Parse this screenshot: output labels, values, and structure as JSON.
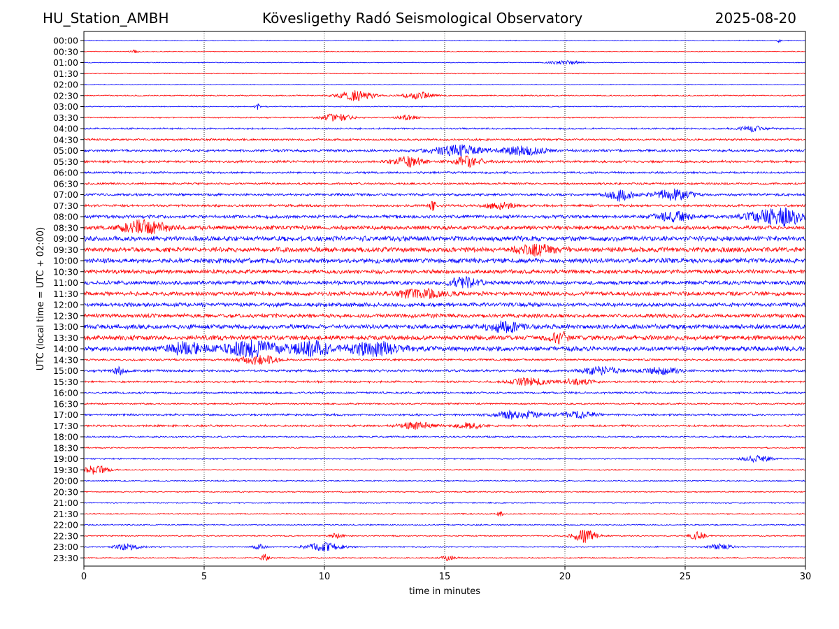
{
  "header": {
    "station": "HU_Station_AMBH",
    "title": "Kövesligethy Radó Seismological Observatory",
    "date": "2025-08-20"
  },
  "chart_data": {
    "type": "line",
    "title": "Kövesligethy Radó Seismological Observatory",
    "xlabel": "time in minutes",
    "ylabel": "UTC (local time = UTC + 02:00)",
    "xlim": [
      0,
      30
    ],
    "xticks": [
      0,
      5,
      10,
      15,
      20,
      25,
      30
    ],
    "grid": "vertical dotted at each x tick",
    "row_labels": [
      "00:00",
      "00:30",
      "01:00",
      "01:30",
      "02:00",
      "02:30",
      "03:00",
      "03:30",
      "04:00",
      "04:30",
      "05:00",
      "05:30",
      "06:00",
      "06:30",
      "07:00",
      "07:30",
      "08:00",
      "08:30",
      "09:00",
      "09:30",
      "10:00",
      "10:30",
      "11:00",
      "11:30",
      "12:00",
      "12:30",
      "13:00",
      "13:30",
      "14:00",
      "14:30",
      "15:00",
      "15:30",
      "16:00",
      "16:30",
      "17:00",
      "17:30",
      "18:00",
      "18:30",
      "19:00",
      "19:30",
      "20:00",
      "20:30",
      "21:00",
      "21:30",
      "22:00",
      "22:30",
      "23:00",
      "23:30"
    ],
    "row_colors": [
      "#0000ff",
      "#ff0000"
    ],
    "noise_level": [
      0.1,
      0.1,
      0.1,
      0.1,
      0.1,
      0.15,
      0.12,
      0.15,
      0.2,
      0.25,
      0.3,
      0.3,
      0.25,
      0.25,
      0.3,
      0.3,
      0.4,
      0.5,
      0.6,
      0.6,
      0.6,
      0.5,
      0.5,
      0.5,
      0.5,
      0.5,
      0.55,
      0.6,
      0.6,
      0.25,
      0.3,
      0.25,
      0.25,
      0.2,
      0.25,
      0.25,
      0.2,
      0.15,
      0.15,
      0.15,
      0.15,
      0.15,
      0.15,
      0.15,
      0.15,
      0.15,
      0.15,
      0.15
    ],
    "events": [
      {
        "row": 0,
        "t": 28.9,
        "amp": 0.5,
        "dur": 0.15
      },
      {
        "row": 1,
        "t": 2.1,
        "amp": 0.3,
        "dur": 0.4
      },
      {
        "row": 2,
        "t": 20.0,
        "amp": 0.5,
        "dur": 1.2
      },
      {
        "row": 5,
        "t": 11.3,
        "amp": 1.1,
        "dur": 1.5
      },
      {
        "row": 5,
        "t": 13.9,
        "amp": 0.8,
        "dur": 1.2
      },
      {
        "row": 6,
        "t": 7.2,
        "amp": 1.0,
        "dur": 0.2
      },
      {
        "row": 7,
        "t": 10.5,
        "amp": 0.8,
        "dur": 1.2
      },
      {
        "row": 7,
        "t": 13.5,
        "amp": 0.6,
        "dur": 0.8
      },
      {
        "row": 8,
        "t": 27.8,
        "amp": 0.7,
        "dur": 1.0
      },
      {
        "row": 10,
        "t": 15.5,
        "amp": 1.2,
        "dur": 2.0
      },
      {
        "row": 10,
        "t": 18.2,
        "amp": 1.0,
        "dur": 1.8
      },
      {
        "row": 11,
        "t": 13.5,
        "amp": 1.1,
        "dur": 1.2
      },
      {
        "row": 11,
        "t": 16.0,
        "amp": 1.3,
        "dur": 1.0
      },
      {
        "row": 14,
        "t": 22.3,
        "amp": 1.3,
        "dur": 1.0
      },
      {
        "row": 14,
        "t": 24.5,
        "amp": 1.2,
        "dur": 1.5
      },
      {
        "row": 15,
        "t": 14.5,
        "amp": 0.9,
        "dur": 0.3
      },
      {
        "row": 15,
        "t": 17.3,
        "amp": 0.7,
        "dur": 1.2
      },
      {
        "row": 16,
        "t": 24.5,
        "amp": 1.0,
        "dur": 1.5
      },
      {
        "row": 16,
        "t": 29.0,
        "amp": 1.9,
        "dur": 2.5
      },
      {
        "row": 17,
        "t": 2.5,
        "amp": 1.5,
        "dur": 1.8
      },
      {
        "row": 19,
        "t": 18.8,
        "amp": 1.0,
        "dur": 1.5
      },
      {
        "row": 22,
        "t": 15.8,
        "amp": 1.0,
        "dur": 1.2
      },
      {
        "row": 23,
        "t": 14.0,
        "amp": 0.9,
        "dur": 2.0
      },
      {
        "row": 26,
        "t": 17.5,
        "amp": 1.0,
        "dur": 1.5
      },
      {
        "row": 27,
        "t": 19.8,
        "amp": 1.0,
        "dur": 0.8
      },
      {
        "row": 28,
        "t": 4.3,
        "amp": 1.4,
        "dur": 1.5
      },
      {
        "row": 28,
        "t": 7.0,
        "amp": 1.6,
        "dur": 2.2
      },
      {
        "row": 28,
        "t": 9.5,
        "amp": 1.5,
        "dur": 1.5
      },
      {
        "row": 28,
        "t": 12.0,
        "amp": 1.4,
        "dur": 2.0
      },
      {
        "row": 29,
        "t": 7.3,
        "amp": 1.0,
        "dur": 1.5
      },
      {
        "row": 30,
        "t": 1.5,
        "amp": 0.8,
        "dur": 0.5
      },
      {
        "row": 30,
        "t": 21.5,
        "amp": 0.8,
        "dur": 1.5
      },
      {
        "row": 30,
        "t": 24.0,
        "amp": 0.7,
        "dur": 1.5
      },
      {
        "row": 31,
        "t": 18.5,
        "amp": 0.8,
        "dur": 1.5
      },
      {
        "row": 31,
        "t": 20.5,
        "amp": 0.7,
        "dur": 1.2
      },
      {
        "row": 34,
        "t": 18.0,
        "amp": 0.9,
        "dur": 2.0
      },
      {
        "row": 34,
        "t": 20.5,
        "amp": 0.7,
        "dur": 1.5
      },
      {
        "row": 35,
        "t": 13.8,
        "amp": 0.7,
        "dur": 1.5
      },
      {
        "row": 35,
        "t": 16.0,
        "amp": 0.7,
        "dur": 1.0
      },
      {
        "row": 38,
        "t": 28.0,
        "amp": 0.7,
        "dur": 1.2
      },
      {
        "row": 39,
        "t": 0.5,
        "amp": 1.0,
        "dur": 1.0
      },
      {
        "row": 43,
        "t": 17.3,
        "amp": 0.6,
        "dur": 0.2
      },
      {
        "row": 45,
        "t": 20.8,
        "amp": 1.5,
        "dur": 1.0
      },
      {
        "row": 45,
        "t": 25.5,
        "amp": 1.2,
        "dur": 0.6
      },
      {
        "row": 45,
        "t": 10.5,
        "amp": 0.6,
        "dur": 0.5
      },
      {
        "row": 46,
        "t": 1.8,
        "amp": 0.7,
        "dur": 1.0
      },
      {
        "row": 46,
        "t": 10.0,
        "amp": 0.9,
        "dur": 1.5
      },
      {
        "row": 46,
        "t": 7.3,
        "amp": 0.6,
        "dur": 0.5
      },
      {
        "row": 46,
        "t": 26.5,
        "amp": 0.6,
        "dur": 1.0
      },
      {
        "row": 47,
        "t": 7.5,
        "amp": 0.8,
        "dur": 0.3
      },
      {
        "row": 47,
        "t": 15.2,
        "amp": 0.5,
        "dur": 0.6
      }
    ]
  }
}
